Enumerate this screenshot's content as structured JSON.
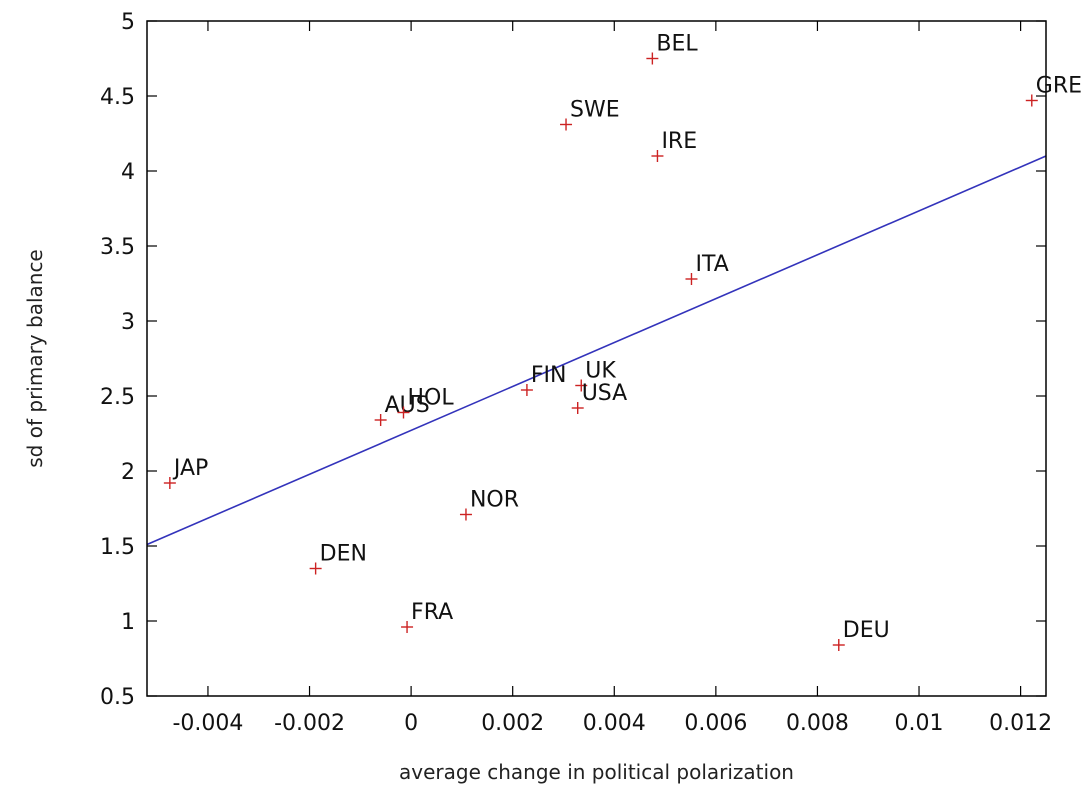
{
  "chart_data": {
    "type": "scatter",
    "title": "",
    "xlabel": "average change in political polarization",
    "ylabel": "sd of primary balance",
    "xlim": [
      -0.0052,
      0.0125
    ],
    "ylim": [
      0.5,
      5
    ],
    "x_ticks": [
      {
        "value": -0.004,
        "label": "-0.004"
      },
      {
        "value": -0.002,
        "label": "-0.002"
      },
      {
        "value": 0,
        "label": "0"
      },
      {
        "value": 0.002,
        "label": "0.002"
      },
      {
        "value": 0.004,
        "label": "0.004"
      },
      {
        "value": 0.006,
        "label": "0.006"
      },
      {
        "value": 0.008,
        "label": "0.008"
      },
      {
        "value": 0.01,
        "label": "0.01"
      },
      {
        "value": 0.012,
        "label": "0.012"
      }
    ],
    "y_ticks": [
      {
        "value": 0.5,
        "label": "0.5"
      },
      {
        "value": 1,
        "label": "1"
      },
      {
        "value": 1.5,
        "label": "1.5"
      },
      {
        "value": 2,
        "label": "2"
      },
      {
        "value": 2.5,
        "label": "2.5"
      },
      {
        "value": 3,
        "label": "3"
      },
      {
        "value": 3.5,
        "label": "3.5"
      },
      {
        "value": 4,
        "label": "4"
      },
      {
        "value": 4.5,
        "label": "4.5"
      },
      {
        "value": 5,
        "label": "5"
      }
    ],
    "grid": false,
    "points": [
      {
        "label": "BEL",
        "x": 0.00475,
        "y": 4.75
      },
      {
        "label": "GRE",
        "x": 0.01222,
        "y": 4.47
      },
      {
        "label": "SWE",
        "x": 0.00305,
        "y": 4.31
      },
      {
        "label": "IRE",
        "x": 0.00485,
        "y": 4.1
      },
      {
        "label": "ITA",
        "x": 0.00552,
        "y": 3.28
      },
      {
        "label": "FIN",
        "x": 0.00228,
        "y": 2.54
      },
      {
        "label": "UK",
        "x": 0.00335,
        "y": 2.57
      },
      {
        "label": "USA",
        "x": 0.00328,
        "y": 2.42
      },
      {
        "label": "AUS",
        "x": -0.0006,
        "y": 2.34
      },
      {
        "label": "HOL",
        "x": -0.00015,
        "y": 2.39
      },
      {
        "label": "JAP",
        "x": -0.00475,
        "y": 1.92
      },
      {
        "label": "NOR",
        "x": 0.00108,
        "y": 1.71
      },
      {
        "label": "DEN",
        "x": -0.00188,
        "y": 1.35
      },
      {
        "label": "FRA",
        "x": -8e-05,
        "y": 0.96
      },
      {
        "label": "DEU",
        "x": 0.00842,
        "y": 0.84
      }
    ],
    "fit_line": {
      "x": [
        -0.0052,
        0.0125
      ],
      "y": [
        1.51,
        4.1
      ]
    },
    "colors": {
      "points": "#cc2222",
      "fit_line": "#3333bb",
      "axes": "#000000"
    }
  }
}
